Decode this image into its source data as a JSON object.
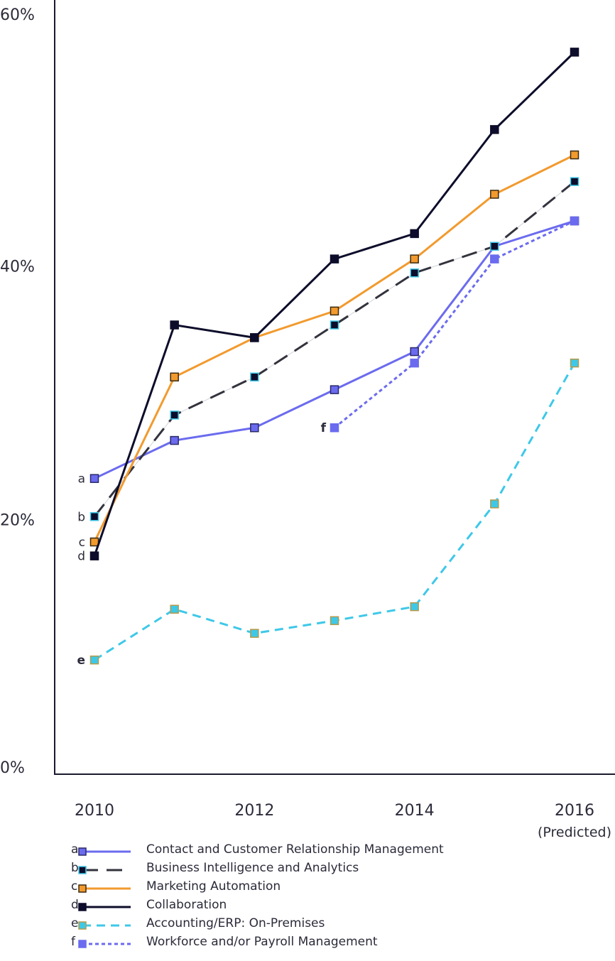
{
  "chart_data": {
    "type": "line",
    "x": [
      2010,
      2011,
      2012,
      2013,
      2014,
      2015,
      2016
    ],
    "x_tick_labels": [
      "2010",
      "2012",
      "2014",
      "2016"
    ],
    "x_tick_values": [
      2010,
      2012,
      2014,
      2016
    ],
    "x_tick_sublabel": "(Predicted)",
    "y_tick_labels": [
      "0%",
      "20%",
      "40%",
      "60%"
    ],
    "y_tick_values": [
      0,
      20,
      40,
      60
    ],
    "ylim": [
      0,
      60
    ],
    "xlim": [
      2010,
      2016
    ],
    "grid": false,
    "legend_position": "bottom",
    "series": [
      {
        "key": "a",
        "name": "Contact and Customer Relationship Management",
        "color": "#6b6bef",
        "marker_border": "#2a2a6a",
        "dash": "",
        "values": [
          23.3,
          26.3,
          27.3,
          30.3,
          33.3,
          41.6,
          43.6
        ]
      },
      {
        "key": "b",
        "name": "Business Intelligence and Analytics",
        "color": "#33333e",
        "marker_fill": "#0d0d2b",
        "marker_border": "#3ec8e8",
        "dash": "22 12",
        "values": [
          20.3,
          28.3,
          31.3,
          35.4,
          39.5,
          41.6,
          46.7
        ]
      },
      {
        "key": "c",
        "name": "Marketing Automation",
        "color": "#f29a2e",
        "marker_border": "#3a2a10",
        "dash": "",
        "values": [
          18.3,
          31.3,
          34.4,
          36.5,
          40.6,
          45.7,
          48.8
        ]
      },
      {
        "key": "d",
        "name": "Collaboration",
        "color": "#0d0d2b",
        "marker_border": "#0d0d2b",
        "dash": "",
        "values": [
          17.2,
          35.4,
          34.4,
          40.6,
          42.6,
          50.8,
          56.9
        ]
      },
      {
        "key": "e",
        "name": "Accounting/ERP: On-Premises",
        "color": "#3ec8e8",
        "marker_border": "#b59a4a",
        "dash": "12 8",
        "values": [
          9.0,
          13.0,
          11.1,
          12.1,
          13.2,
          21.3,
          32.4
        ]
      },
      {
        "key": "f",
        "name": "Workforce and/or Payroll Management",
        "color": "#6b6bef",
        "marker_border": "#6b6bef",
        "dash": "5 4",
        "values": [
          null,
          null,
          null,
          27.3,
          32.4,
          40.6,
          43.6
        ]
      }
    ]
  }
}
